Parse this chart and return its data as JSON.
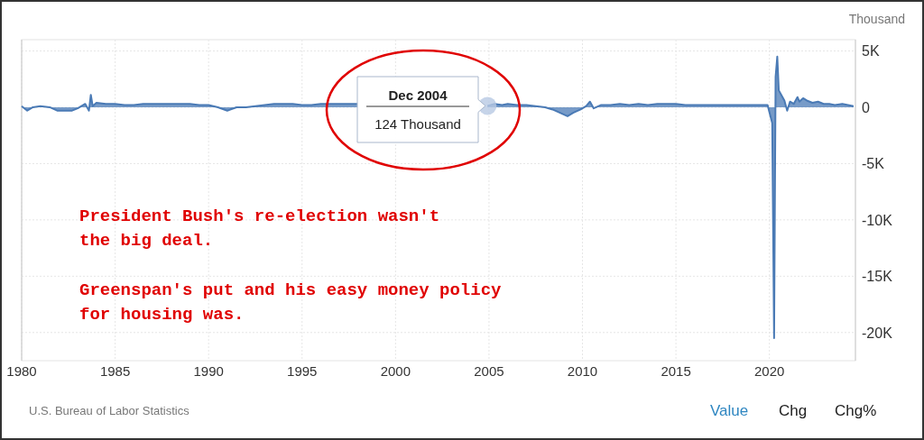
{
  "chart_data": {
    "type": "area",
    "ylabel": "Thousand",
    "xlim": [
      1980,
      2024.6
    ],
    "xticks": [
      1980,
      1985,
      1990,
      1995,
      2000,
      2005,
      2010,
      2015,
      2020
    ],
    "ylim": [
      -22500,
      6000
    ],
    "yticks": [
      {
        "value": 5000,
        "label": "5K"
      },
      0,
      {
        "value": -5000,
        "label": "-5K"
      },
      {
        "value": -10000,
        "label": "-10K"
      },
      {
        "value": -15000,
        "label": "-15K"
      },
      {
        "value": -20000,
        "label": "-20K"
      }
    ],
    "grid": true,
    "series": [
      {
        "color": "#4a7ab5",
        "x": [
          1980.0,
          1980.3,
          1980.6,
          1981.0,
          1981.5,
          1981.9,
          1982.3,
          1982.7,
          1983.0,
          1983.4,
          1983.6,
          1983.7,
          1983.8,
          1984.0,
          1984.5,
          1985.0,
          1985.5,
          1986.0,
          1986.5,
          1987.0,
          1987.5,
          1988.0,
          1988.5,
          1989.0,
          1989.5,
          1990.0,
          1990.5,
          1991.0,
          1991.5,
          1992.0,
          1992.5,
          1993.0,
          1993.5,
          1994.0,
          1994.5,
          1995.0,
          1995.5,
          1996.0,
          1996.5,
          1997.0,
          1997.5,
          1998.0,
          1998.5,
          1999.0,
          1999.5,
          2000.0,
          2000.25,
          2000.5,
          2000.8,
          2001.2,
          2001.8,
          2002.3,
          2002.8,
          2003.3,
          2003.7,
          2004.2,
          2004.5,
          2004.92,
          2005.3,
          2005.7,
          2006.0,
          2006.5,
          2007.0,
          2007.5,
          2008.0,
          2008.4,
          2008.8,
          2009.2,
          2009.5,
          2009.9,
          2010.2,
          2010.4,
          2010.6,
          2011.0,
          2011.5,
          2012.0,
          2012.5,
          2013.0,
          2013.5,
          2014.0,
          2014.5,
          2015.0,
          2015.5,
          2016.0,
          2016.5,
          2017.0,
          2017.5,
          2018.0,
          2018.5,
          2019.0,
          2019.5,
          2019.9,
          2020.15,
          2020.25,
          2020.33,
          2020.42,
          2020.5,
          2020.6,
          2020.8,
          2020.95,
          2021.1,
          2021.3,
          2021.5,
          2021.6,
          2021.8,
          2022.0,
          2022.3,
          2022.6,
          2022.9,
          2023.2,
          2023.5,
          2023.9,
          2024.2,
          2024.5
        ],
        "values": [
          100,
          -300,
          0,
          100,
          0,
          -300,
          -300,
          -300,
          -100,
          300,
          -300,
          1100,
          100,
          400,
          300,
          300,
          200,
          200,
          300,
          300,
          300,
          300,
          300,
          300,
          200,
          200,
          0,
          -300,
          0,
          0,
          100,
          200,
          300,
          300,
          300,
          200,
          200,
          300,
          300,
          300,
          300,
          300,
          null,
          null,
          null,
          null,
          null,
          null,
          null,
          null,
          null,
          null,
          null,
          null,
          null,
          null,
          null,
          124,
          300,
          200,
          300,
          200,
          200,
          100,
          0,
          -200,
          -500,
          -800,
          -500,
          -200,
          100,
          500,
          -100,
          200,
          200,
          300,
          200,
          300,
          200,
          300,
          300,
          300,
          200,
          200,
          200,
          200,
          200,
          200,
          200,
          200,
          200,
          200,
          -1400,
          -20500,
          2700,
          4500,
          1500,
          1200,
          600,
          -300,
          500,
          300,
          900,
          500,
          800,
          600,
          400,
          500,
          300,
          300,
          200,
          300,
          200,
          100
        ]
      }
    ],
    "annotations": [
      {
        "text": "Dec 2004\n124 Thousand",
        "x": 2004.92,
        "y": 124
      },
      "President Bush's re-election wasn't\nthe big deal.",
      "Greenspan's put and his easy money policy\nfor housing was.",
      "U.S. Bureau of Labor Statistics",
      "Value",
      "Chg",
      "Chg%"
    ]
  }
}
